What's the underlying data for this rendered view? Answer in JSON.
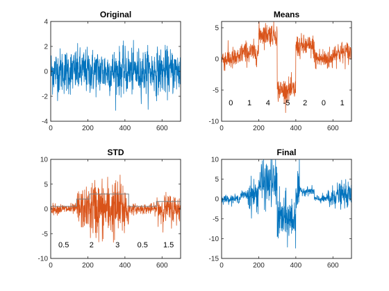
{
  "colors": {
    "blue": "#0072BD",
    "orange": "#D95319",
    "step": "#7f7f7f",
    "axis": "#262626"
  },
  "chart_data": [
    {
      "type": "line",
      "title": "Original",
      "xlim": [
        0,
        700
      ],
      "ylim": [
        -4,
        4
      ],
      "xticks": [
        "0",
        "200",
        "400",
        "600"
      ],
      "yticks": [
        "-4",
        "-2",
        "0",
        "2",
        "4"
      ],
      "grid": false,
      "series": [
        {
          "color": "#0072BD",
          "kind": "noise",
          "n": 700,
          "segments": [
            {
              "x0": 0,
              "x1": 700,
              "mean": 0,
              "std": 0.9
            }
          ]
        }
      ],
      "annotations": []
    },
    {
      "type": "line",
      "title": "Means",
      "xlim": [
        0,
        700
      ],
      "ylim": [
        -10,
        6
      ],
      "xticks": [
        "0",
        "200",
        "400",
        "600"
      ],
      "yticks": [
        "-10",
        "-5",
        "0",
        "5"
      ],
      "grid": false,
      "series": [
        {
          "color": "#D95319",
          "kind": "noise",
          "n": 700,
          "segments": [
            {
              "x0": 0,
              "x1": 100,
              "mean": 0,
              "std": 0.9
            },
            {
              "x0": 100,
              "x1": 200,
              "mean": 1,
              "std": 0.9
            },
            {
              "x0": 200,
              "x1": 300,
              "mean": 4,
              "std": 0.9
            },
            {
              "x0": 300,
              "x1": 400,
              "mean": -5,
              "std": 0.9
            },
            {
              "x0": 400,
              "x1": 500,
              "mean": 2,
              "std": 0.9
            },
            {
              "x0": 500,
              "x1": 600,
              "mean": 0,
              "std": 0.9
            },
            {
              "x0": 600,
              "x1": 700,
              "mean": 1,
              "std": 0.9
            }
          ]
        }
      ],
      "annotations": [
        {
          "text": "0",
          "x": 50,
          "y": -7
        },
        {
          "text": "1",
          "x": 150,
          "y": -7
        },
        {
          "text": "4",
          "x": 250,
          "y": -7
        },
        {
          "text": "-5",
          "x": 350,
          "y": -7
        },
        {
          "text": "2",
          "x": 450,
          "y": -7
        },
        {
          "text": "0",
          "x": 550,
          "y": -7
        },
        {
          "text": "1",
          "x": 650,
          "y": -7
        }
      ]
    },
    {
      "type": "line",
      "title": "STD",
      "xlim": [
        0,
        700
      ],
      "ylim": [
        -10,
        10
      ],
      "xticks": [
        "0",
        "200",
        "400",
        "600"
      ],
      "yticks": [
        "-10",
        "-5",
        "0",
        "5",
        "10"
      ],
      "grid": false,
      "series": [
        {
          "color": "#D95319",
          "kind": "noise",
          "n": 700,
          "segments": [
            {
              "x0": 0,
              "x1": 140,
              "mean": 0,
              "std": 0.5
            },
            {
              "x0": 140,
              "x1": 210,
              "mean": 0,
              "std": 2
            },
            {
              "x0": 210,
              "x1": 420,
              "mean": 0,
              "std": 3
            },
            {
              "x0": 420,
              "x1": 570,
              "mean": 0,
              "std": 0.5
            },
            {
              "x0": 570,
              "x1": 700,
              "mean": 0,
              "std": 1.5
            }
          ]
        },
        {
          "color": "#7f7f7f",
          "kind": "step",
          "points": [
            [
              0,
              0.5
            ],
            [
              140,
              0.5
            ],
            [
              140,
              2
            ],
            [
              210,
              2
            ],
            [
              210,
              3
            ],
            [
              420,
              3
            ],
            [
              420,
              0.5
            ],
            [
              570,
              0.5
            ],
            [
              570,
              1.5
            ],
            [
              700,
              1.5
            ]
          ]
        }
      ],
      "annotations": [
        {
          "text": "0.5",
          "x": 70,
          "y": -7.2
        },
        {
          "text": "2",
          "x": 220,
          "y": -7.2
        },
        {
          "text": "3",
          "x": 360,
          "y": -7.2
        },
        {
          "text": "0.5",
          "x": 495,
          "y": -7.2
        },
        {
          "text": "1.5",
          "x": 635,
          "y": -7.2
        }
      ]
    },
    {
      "type": "line",
      "title": "Final",
      "xlim": [
        0,
        700
      ],
      "ylim": [
        -15,
        10
      ],
      "xticks": [
        "0",
        "200",
        "400",
        "600"
      ],
      "yticks": [
        "-15",
        "-10",
        "-5",
        "0",
        "5",
        "10"
      ],
      "grid": false,
      "series": [
        {
          "color": "#0072BD",
          "kind": "noise",
          "n": 700,
          "segments": [
            {
              "x0": 0,
              "x1": 100,
              "mean": 0,
              "std": 0.5
            },
            {
              "x0": 100,
              "x1": 140,
              "mean": 1,
              "std": 0.5
            },
            {
              "x0": 140,
              "x1": 200,
              "mean": 1,
              "std": 2
            },
            {
              "x0": 200,
              "x1": 210,
              "mean": 4,
              "std": 2
            },
            {
              "x0": 210,
              "x1": 300,
              "mean": 4,
              "std": 3
            },
            {
              "x0": 300,
              "x1": 400,
              "mean": -5,
              "std": 3
            },
            {
              "x0": 400,
              "x1": 420,
              "mean": 2,
              "std": 3
            },
            {
              "x0": 420,
              "x1": 500,
              "mean": 2,
              "std": 0.5
            },
            {
              "x0": 500,
              "x1": 570,
              "mean": 0,
              "std": 0.5
            },
            {
              "x0": 570,
              "x1": 600,
              "mean": 0,
              "std": 1.5
            },
            {
              "x0": 600,
              "x1": 700,
              "mean": 1,
              "std": 1.5
            }
          ]
        }
      ],
      "annotations": []
    }
  ]
}
